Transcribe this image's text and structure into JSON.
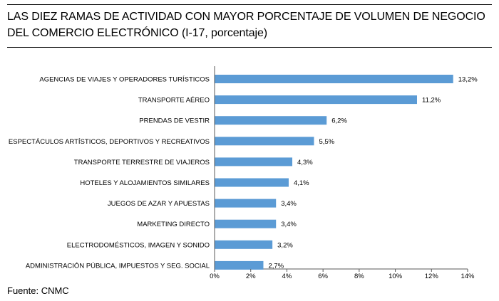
{
  "header": {
    "title_line1": "LAS DIEZ RAMAS DE ACTIVIDAD CON MAYOR PORCENTAJE DE VOLUMEN DE NEGOCIO",
    "title_line2": "DEL COMERCIO ELECTRÓNICO (I-17, porcentaje)"
  },
  "footer": {
    "source": "Fuente: CNMC"
  },
  "colors": {
    "bar": "#5b9bd5",
    "axis": "#595959",
    "text": "#000000"
  },
  "chart_data": {
    "type": "bar",
    "orientation": "horizontal",
    "title": "LAS DIEZ RAMAS DE ACTIVIDAD CON MAYOR PORCENTAJE DE VOLUMEN DE NEGOCIO DEL COMERCIO ELECTRÓNICO (I-17, porcentaje)",
    "categories": [
      "AGENCIAS DE VIAJES Y OPERADORES TURÍSTICOS",
      "TRANSPORTE AÉREO",
      "PRENDAS DE VESTIR",
      "ESPECTÁCULOS ARTÍSTICOS, DEPORTIVOS Y RECREATIVOS",
      "TRANSPORTE TERRESTRE DE VIAJEROS",
      "HOTELES  Y ALOJAMIENTOS SIMILARES",
      "JUEGOS DE AZAR Y APUESTAS",
      "MARKETING DIRECTO",
      "ELECTRODOMÉSTICOS,  IMAGEN Y SONIDO",
      "ADMINISTRACIÓN PÚBLICA, IMPUESTOS Y SEG. SOCIAL"
    ],
    "values": [
      13.2,
      11.2,
      6.2,
      5.5,
      4.3,
      4.1,
      3.4,
      3.4,
      3.2,
      2.7
    ],
    "value_labels": [
      "13,2%",
      "11,2%",
      "6,2%",
      "5,5%",
      "4,3%",
      "4,1%",
      "3,4%",
      "3,4%",
      "3,2%",
      "2,7%"
    ],
    "xlim": [
      0,
      14
    ],
    "xticks": [
      0,
      2,
      4,
      6,
      8,
      10,
      12,
      14
    ],
    "xtick_labels": [
      "0%",
      "2%",
      "4%",
      "6%",
      "8%",
      "10%",
      "12%",
      "14%"
    ],
    "xlabel": "",
    "ylabel": "",
    "grid": false,
    "legend": "none"
  }
}
